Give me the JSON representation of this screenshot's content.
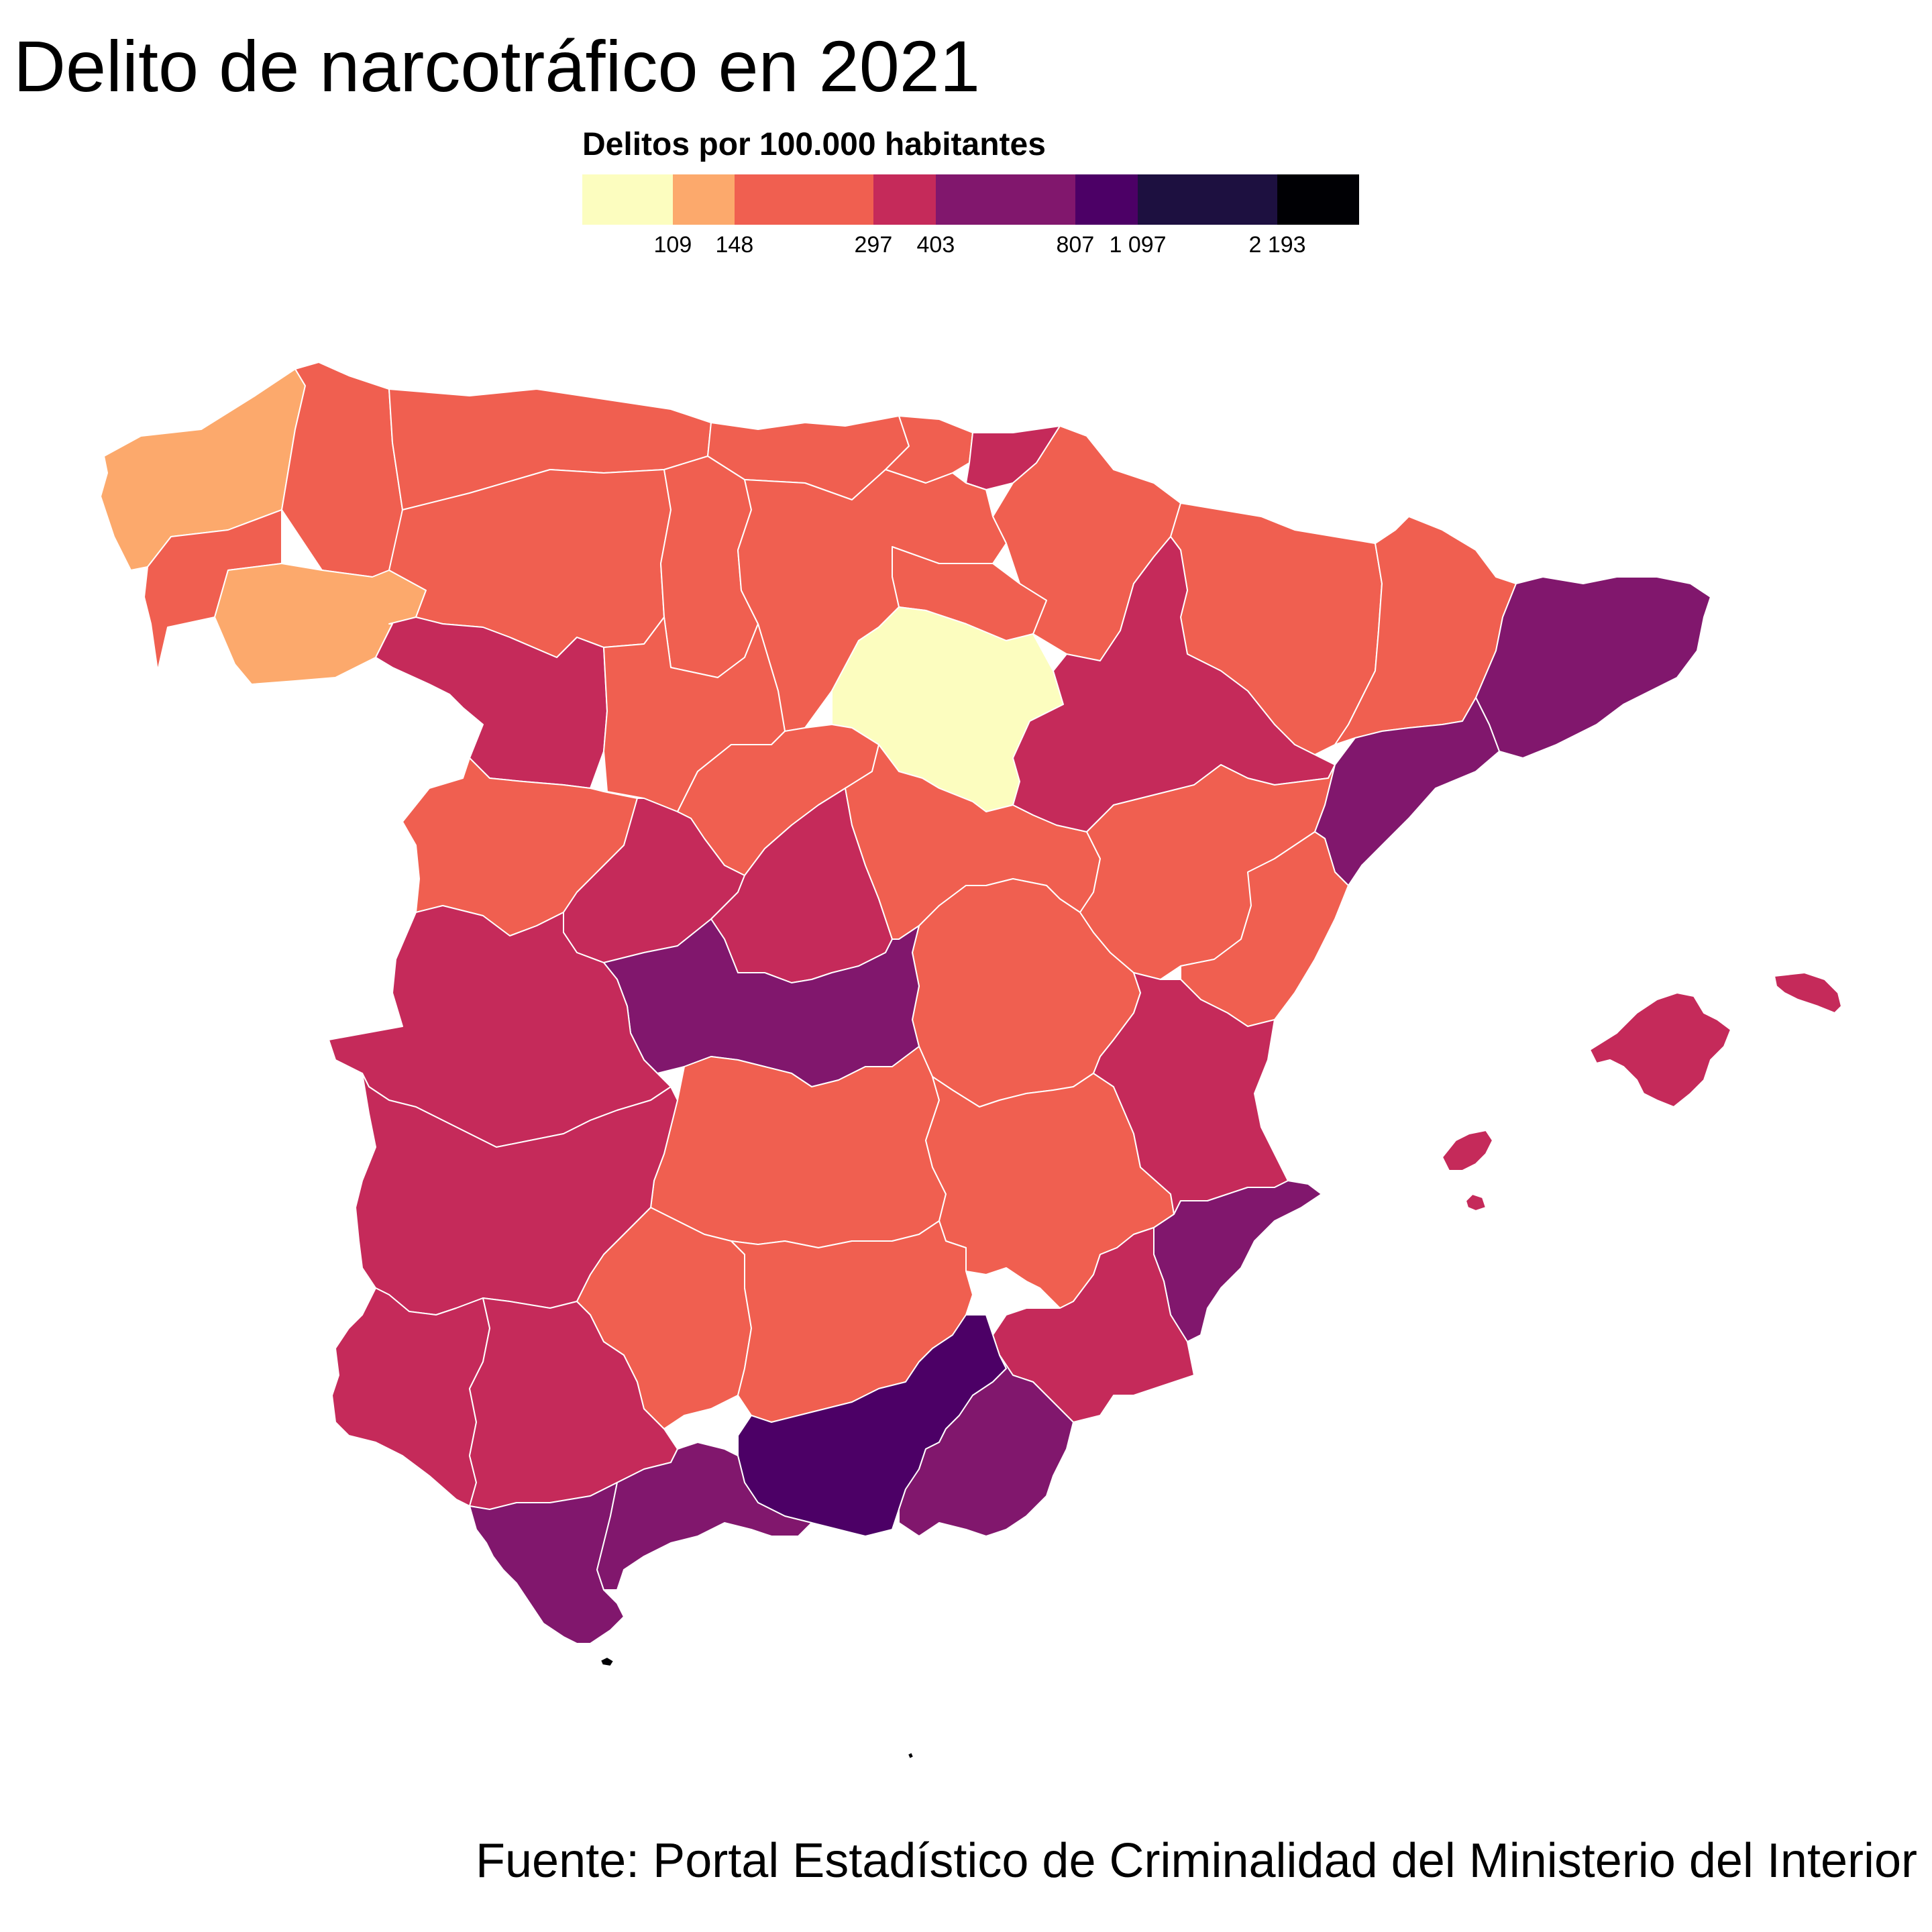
{
  "title": "Delito de narcotráfico en 2021",
  "source": "Fuente: Portal Estadístico de Criminalidad del Ministerio del Interior",
  "legend": {
    "title": "Delitos por 100.000 habitantes",
    "breaks": [
      "109",
      "148",
      "297",
      "403",
      "807",
      "1 097",
      "2 193"
    ],
    "break_values": [
      109,
      148,
      297,
      403,
      807,
      1097,
      2193
    ],
    "bins": [
      {
        "color": "#fcfdbf",
        "min": null,
        "max": 109
      },
      {
        "color": "#fca96c",
        "min": 109,
        "max": 148
      },
      {
        "color": "#f05f50",
        "min": 148,
        "max": 297
      },
      {
        "color": "#c52a5a",
        "min": 297,
        "max": 403
      },
      {
        "color": "#81176d",
        "min": 403,
        "max": 807
      },
      {
        "color": "#4c0066",
        "min": 807,
        "max": 1097
      },
      {
        "color": "#1d1040",
        "min": 1097,
        "max": 2193
      },
      {
        "color": "#000004",
        "min": 2193,
        "max": null
      }
    ]
  },
  "regions": [
    {
      "id": "asturias",
      "bin": 2
    },
    {
      "id": "cantabria",
      "bin": 2
    },
    {
      "id": "burgos",
      "bin": 2
    },
    {
      "id": "soria",
      "bin": 0
    },
    {
      "id": "lugo",
      "bin": 2
    },
    {
      "id": "a-coruna",
      "bin": 1
    },
    {
      "id": "ourense",
      "bin": 1
    },
    {
      "id": "pontevedra",
      "bin": 2
    },
    {
      "id": "leon",
      "bin": 2
    },
    {
      "id": "palencia",
      "bin": 2
    },
    {
      "id": "zamora",
      "bin": 3
    },
    {
      "id": "valladolid",
      "bin": 2
    },
    {
      "id": "salamanca",
      "bin": 2
    },
    {
      "id": "segovia",
      "bin": 2
    },
    {
      "id": "avila",
      "bin": 3
    },
    {
      "id": "madrid",
      "bin": 3
    },
    {
      "id": "guadalajara",
      "bin": 2
    },
    {
      "id": "cuenca",
      "bin": 2
    },
    {
      "id": "toledo",
      "bin": 4
    },
    {
      "id": "caceres",
      "bin": 3
    },
    {
      "id": "badajoz",
      "bin": 3
    },
    {
      "id": "ciudad-real",
      "bin": 2
    },
    {
      "id": "albacete",
      "bin": 2
    },
    {
      "id": "bizkaia",
      "bin": 2
    },
    {
      "id": "gipuzkoa",
      "bin": 3
    },
    {
      "id": "la-rioja",
      "bin": 2
    },
    {
      "id": "navarra",
      "bin": 2
    },
    {
      "id": "zaragoza",
      "bin": 3
    },
    {
      "id": "huesca",
      "bin": 2
    },
    {
      "id": "teruel",
      "bin": 2
    },
    {
      "id": "lleida",
      "bin": 2
    },
    {
      "id": "barcelona-girona",
      "bin": 4
    },
    {
      "id": "tarragona",
      "bin": 4
    },
    {
      "id": "castellon",
      "bin": 2
    },
    {
      "id": "valencia",
      "bin": 3
    },
    {
      "id": "alicante",
      "bin": 4
    },
    {
      "id": "murcia",
      "bin": 3
    },
    {
      "id": "huelva",
      "bin": 3
    },
    {
      "id": "sevilla",
      "bin": 3
    },
    {
      "id": "cordoba",
      "bin": 2
    },
    {
      "id": "jaen",
      "bin": 2
    },
    {
      "id": "granada",
      "bin": 5
    },
    {
      "id": "almeria",
      "bin": 4
    },
    {
      "id": "cadiz",
      "bin": 4
    },
    {
      "id": "malaga",
      "bin": 4
    },
    {
      "id": "mallorca",
      "bin": 3
    },
    {
      "id": "menorca",
      "bin": 3
    },
    {
      "id": "ibiza",
      "bin": 3
    },
    {
      "id": "formentera",
      "bin": 3
    },
    {
      "id": "ceuta",
      "bin": 7
    },
    {
      "id": "melilla",
      "bin": 7
    }
  ]
}
